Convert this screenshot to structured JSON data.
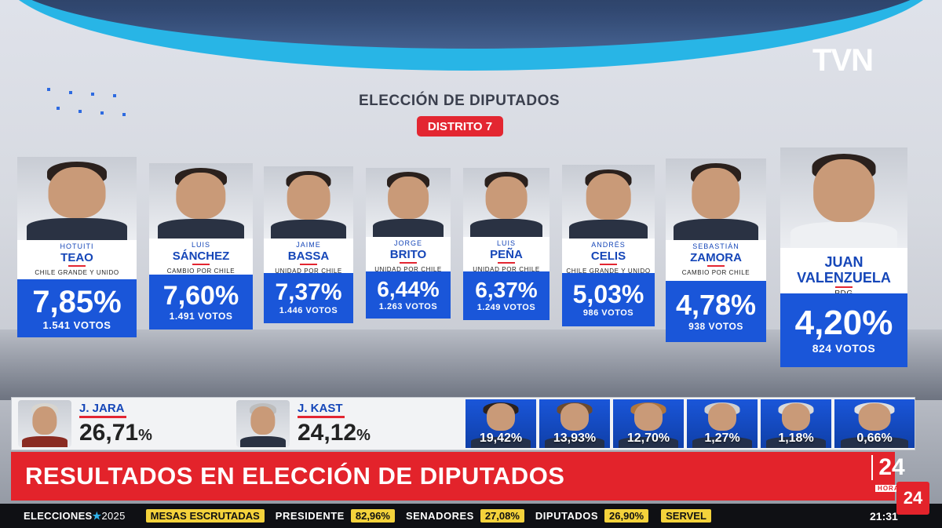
{
  "logo": "TVN",
  "header": {
    "title": "ELECCIÓN DE DIPUTADOS",
    "district": "DISTRITO 7"
  },
  "candidates": [
    {
      "first": "HOTUITI",
      "last": "TEAO",
      "party": "CHILE GRANDE Y UNIDO",
      "pct": "7,85%",
      "votes": "1.541 VOTOS"
    },
    {
      "first": "LUIS",
      "last": "SÁNCHEZ",
      "party": "CAMBIO POR CHILE",
      "pct": "7,60%",
      "votes": "1.491 VOTOS"
    },
    {
      "first": "JAIME",
      "last": "BASSA",
      "party": "UNIDAD POR CHILE",
      "pct": "7,37%",
      "votes": "1.446 VOTOS"
    },
    {
      "first": "JORGE",
      "last": "BRITO",
      "party": "UNIDAD POR CHILE",
      "pct": "6,44%",
      "votes": "1.263 VOTOS"
    },
    {
      "first": "LUIS",
      "last": "PEÑA",
      "party": "UNIDAD POR CHILE",
      "pct": "6,37%",
      "votes": "1.249 VOTOS"
    },
    {
      "first": "ANDRÉS",
      "last": "CELIS",
      "party": "CHILE GRANDE Y UNIDO",
      "pct": "5,03%",
      "votes": "986 VOTOS"
    },
    {
      "first": "SEBASTIÁN",
      "last": "ZAMORA",
      "party": "CAMBIO POR CHILE",
      "pct": "4,78%",
      "votes": "938 VOTOS"
    },
    {
      "first": "",
      "last": "JUAN VALENZUELA",
      "party": "PDG",
      "pct": "4,20%",
      "votes": "824 VOTOS"
    }
  ],
  "president": {
    "leaders": [
      {
        "name": "J. JARA",
        "pct": "26,71",
        "unit": "%"
      },
      {
        "name": "J. KAST",
        "pct": "24,12",
        "unit": "%"
      }
    ],
    "others": [
      "19,42%",
      "13,93%",
      "12,70%",
      "1,27%",
      "1,18%",
      "0,66%"
    ]
  },
  "headline": "RESULTADOS EN ELECCIÓN DE DIPUTADOS",
  "channel": {
    "number": "24",
    "sub": "HORAS",
    "badge": "24"
  },
  "ticker": {
    "brand": "ELECCIONES",
    "star": "★",
    "year": "2025",
    "mesas": "MESAS ESCRUTADAS",
    "presidente_label": "PRESIDENTE",
    "presidente_value": "82,96%",
    "senadores_label": "SENADORES",
    "senadores_value": "27,08%",
    "diputados_label": "DIPUTADOS",
    "diputados_value": "26,90%",
    "servel": "SERVEL",
    "clock": "21:31"
  },
  "colors": {
    "accent_red": "#e3232b",
    "card_blue": "#1a56d9",
    "ticker_yellow": "#f4d23b",
    "arc_cyan": "#1fb3e6"
  }
}
